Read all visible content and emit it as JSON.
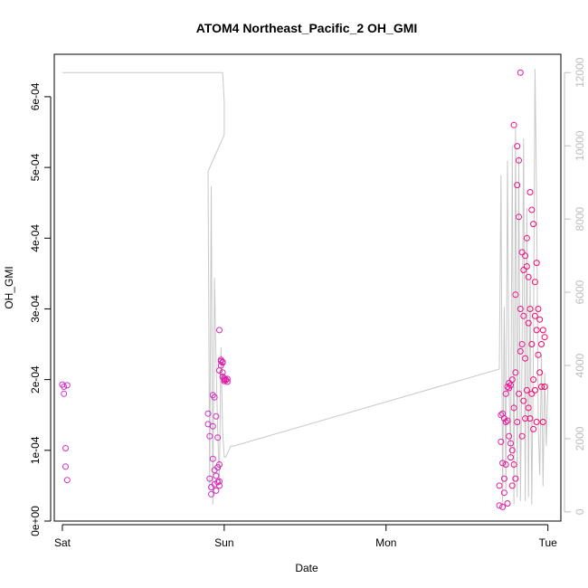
{
  "chart_data": {
    "type": "scatter",
    "title": "ATOM4 Northeast_Pacific_2 OH_GMI",
    "xlabel": "Date",
    "ylabel": "OH_GMI",
    "x_ticks": [
      "Sat",
      "Sun",
      "Mon",
      "Tue"
    ],
    "xlim_days": [
      -0.05,
      3.08
    ],
    "y_left": {
      "lim": [
        0,
        0.00066
      ],
      "ticks": [
        0,
        0.0001,
        0.0002,
        0.0003,
        0.0004,
        0.0005,
        0.0006
      ],
      "tick_labels": [
        "0e+00",
        "1e-04",
        "2e-04",
        "3e-04",
        "4e-04",
        "5e-04",
        "6e-04"
      ]
    },
    "y_right": {
      "lim": [
        -250,
        12500
      ],
      "ticks": [
        0,
        2000,
        4000,
        6000,
        8000,
        10000,
        12000
      ],
      "tick_labels": [
        "0",
        "2000",
        "4000",
        "6000",
        "8000",
        "10000",
        "12000"
      ]
    },
    "grid": false,
    "series": [
      {
        "type": "points",
        "axis": "left",
        "color_from": "#cc33cc",
        "color_to": "#ff0066",
        "x": [
          0.0,
          0.01,
          0.01,
          0.02,
          0.02,
          0.03,
          0.03,
          0.9,
          0.9,
          0.91,
          0.91,
          0.92,
          0.92,
          0.93,
          0.93,
          0.93,
          0.94,
          0.94,
          0.94,
          0.95,
          0.95,
          0.95,
          0.96,
          0.96,
          0.96,
          0.97,
          0.97,
          0.97,
          0.97,
          0.97,
          0.98,
          0.98,
          0.98,
          0.99,
          0.99,
          0.99,
          0.99,
          1.0,
          1.0,
          1.0,
          1.01,
          1.01,
          1.02,
          1.02,
          2.7,
          2.7,
          2.71,
          2.71,
          2.72,
          2.72,
          2.72,
          2.73,
          2.73,
          2.73,
          2.74,
          2.74,
          2.74,
          2.75,
          2.75,
          2.75,
          2.76,
          2.76,
          2.76,
          2.77,
          2.77,
          2.77,
          2.78,
          2.78,
          2.78,
          2.79,
          2.79,
          2.79,
          2.8,
          2.8,
          2.8,
          2.81,
          2.81,
          2.81,
          2.82,
          2.82,
          2.82,
          2.83,
          2.83,
          2.83,
          2.84,
          2.84,
          2.84,
          2.85,
          2.85,
          2.85,
          2.86,
          2.86,
          2.86,
          2.87,
          2.87,
          2.87,
          2.88,
          2.88,
          2.88,
          2.89,
          2.89,
          2.89,
          2.9,
          2.9,
          2.9,
          2.91,
          2.91,
          2.91,
          2.92,
          2.92,
          2.92,
          2.93,
          2.93,
          2.93,
          2.94,
          2.94,
          2.95,
          2.95,
          2.96,
          2.96,
          2.97,
          2.97,
          2.98,
          2.98
        ],
        "y": [
          0.000193,
          0.00019,
          0.00018,
          0.000103,
          7.7e-05,
          5.8e-05,
          0.000192,
          0.000152,
          0.000137,
          0.00012,
          6e-05,
          4.8e-05,
          3.8e-05,
          0.000178,
          0.000134,
          8.8e-05,
          0.000175,
          7.2e-05,
          5.2e-05,
          0.000148,
          6.4e-05,
          4.3e-05,
          0.000118,
          7.6e-05,
          5.5e-05,
          0.00027,
          0.000213,
          8e-05,
          5e-05,
          5.6e-05,
          0.000228,
          0.00022,
          0.000226,
          0.000224,
          0.00021,
          0.000225,
          0.000204,
          0.0002,
          0.000202,
          0.000198,
          0.0002,
          0.000199,
          0.000201,
          0.000197,
          2.2e-05,
          5e-05,
          0.000112,
          0.00015,
          8.2e-05,
          0.000152,
          2e-05,
          0.000145,
          4e-05,
          6e-05,
          0.00014,
          8e-05,
          0.00018,
          0.00019,
          0.000142,
          2.5e-05,
          0.000195,
          0.000188,
          0.00012,
          0.000192,
          0.00011,
          9e-05,
          0.0002,
          0.0001,
          5e-05,
          0.00016,
          8e-05,
          0.00056,
          0.00032,
          0.00021,
          6e-05,
          0.00053,
          0.000475,
          0.00014,
          0.00051,
          0.00043,
          0.00018,
          0.000634,
          0.00024,
          0.0003,
          0.00038,
          0.00025,
          0.00012,
          0.000355,
          0.00029,
          0.00017,
          0.000375,
          0.00023,
          0.000145,
          0.00036,
          0.0004,
          0.000185,
          0.000345,
          0.00028,
          0.00016,
          0.000465,
          0.0003,
          0.000145,
          0.00044,
          0.00025,
          0.00018,
          0.00042,
          0.0002,
          0.00013,
          0.000338,
          0.00029,
          0.000185,
          0.000365,
          0.00027,
          0.00014,
          0.0003,
          0.000235,
          0.000285,
          0.00021,
          0.00025,
          0.00019,
          0.00027,
          0.00014,
          0.00026,
          0.00019
        ]
      },
      {
        "type": "line",
        "axis": "right",
        "color": "#c8c8c8",
        "x": [
          0.0,
          0.03,
          0.05,
          0.99,
          1.0,
          1.0,
          0.9,
          0.91,
          0.92,
          0.93,
          0.94,
          0.95,
          0.96,
          0.97,
          0.98,
          0.99,
          1.0,
          1.01,
          1.02,
          1.03,
          1.04,
          1.05,
          1.06,
          2.7,
          2.71,
          2.72,
          2.73,
          2.74,
          2.75,
          2.76,
          2.77,
          2.78,
          2.79,
          2.8,
          2.81,
          2.82,
          2.83,
          2.84,
          2.85,
          2.86,
          2.87,
          2.88,
          2.89,
          2.9,
          2.91,
          2.92,
          2.93,
          2.94,
          2.95,
          2.96,
          2.97,
          2.98,
          2.99,
          3.0
        ],
        "y": [
          12000,
          12000,
          12000,
          12000,
          11200,
          10300,
          9300,
          600,
          8900,
          200,
          6400,
          4000,
          2200,
          800,
          4500,
          2200,
          1500,
          1500,
          1600,
          1700,
          1800,
          1800,
          1800,
          3900,
          9200,
          200,
          5600,
          600,
          9600,
          3500,
          1500,
          10000,
          200,
          10500,
          400,
          9700,
          300,
          4300,
          10200,
          300,
          8300,
          400,
          6500,
          200,
          4200,
          12100,
          8600,
          2300,
          1000,
          4300,
          700,
          3800,
          1800,
          3500
        ]
      }
    ]
  }
}
